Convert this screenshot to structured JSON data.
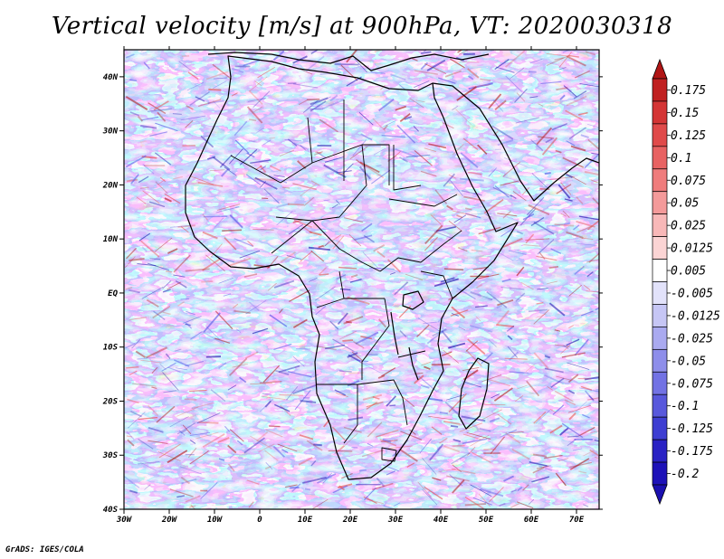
{
  "title": "Vertical velocity [m/s] at 900hPa, VT: 2020030318",
  "footer": "GrADS: IGES/COLA",
  "map": {
    "variable": "Vertical velocity",
    "units": "m/s",
    "level": "900hPa",
    "valid_time": "2020030318",
    "lon_range": [
      -30,
      75
    ],
    "lat_range": [
      -40,
      45
    ],
    "lon_ticks": [
      "30W",
      "20W",
      "10W",
      "0",
      "10E",
      "20E",
      "30E",
      "40E",
      "50E",
      "60E",
      "70E"
    ],
    "lat_ticks": [
      "40N",
      "30N",
      "20N",
      "10N",
      "EQ",
      "10S",
      "20S",
      "30S",
      "40S"
    ],
    "colors": {
      "positive_strong": "#b01515",
      "positive": "#e84a4a",
      "near_zero": "#ffffff",
      "negative": "#5656e8",
      "negative_strong": "#1b10b0",
      "boundary": "#000000"
    }
  },
  "colorbar": {
    "labels": [
      "0.175",
      "0.15",
      "0.125",
      "0.1",
      "0.075",
      "0.05",
      "0.025",
      "0.0125",
      "0.005",
      "-0.005",
      "-0.0125",
      "-0.025",
      "-0.05",
      "-0.075",
      "-0.1",
      "-0.125",
      "-0.175",
      "-0.2"
    ],
    "colors": [
      "#c02020",
      "#d43535",
      "#e04a4a",
      "#e86262",
      "#ef7c7c",
      "#f49a9a",
      "#f8b8b8",
      "#fbd4d4",
      "#ffffff",
      "#e2e2fa",
      "#c6c6f5",
      "#aaaaf0",
      "#8e8eea",
      "#7272e4",
      "#5858dc",
      "#3e3ed2",
      "#2a22c4",
      "#1e12b8"
    ],
    "top_arrow_color": "#b01515",
    "bottom_arrow_color": "#1b10b0"
  }
}
